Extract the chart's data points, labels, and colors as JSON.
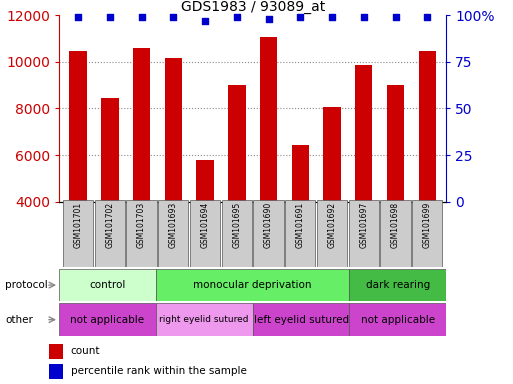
{
  "title": "GDS1983 / 93089_at",
  "samples": [
    "GSM101701",
    "GSM101702",
    "GSM101703",
    "GSM101693",
    "GSM101694",
    "GSM101695",
    "GSM101690",
    "GSM101691",
    "GSM101692",
    "GSM101697",
    "GSM101698",
    "GSM101699"
  ],
  "counts": [
    10450,
    8450,
    10600,
    10150,
    5800,
    9000,
    11050,
    6450,
    8050,
    9850,
    9000,
    10450
  ],
  "percentile_ranks": [
    99,
    99,
    99,
    99,
    97,
    99,
    98,
    99,
    99,
    99,
    99,
    99
  ],
  "ylim_left": [
    4000,
    12000
  ],
  "ylim_right": [
    0,
    100
  ],
  "yticks_left": [
    4000,
    6000,
    8000,
    10000,
    12000
  ],
  "yticks_right": [
    0,
    25,
    50,
    75,
    100
  ],
  "bar_color": "#cc0000",
  "dot_color": "#0000cc",
  "protocol_groups": [
    {
      "label": "control",
      "start": 0,
      "end": 3,
      "color": "#ccffcc"
    },
    {
      "label": "monocular deprivation",
      "start": 3,
      "end": 9,
      "color": "#66ee66"
    },
    {
      "label": "dark rearing",
      "start": 9,
      "end": 12,
      "color": "#44bb44"
    }
  ],
  "other_groups": [
    {
      "label": "not applicable",
      "start": 0,
      "end": 3,
      "color": "#cc44cc"
    },
    {
      "label": "right eyelid sutured",
      "start": 3,
      "end": 6,
      "color": "#ee99ee"
    },
    {
      "label": "left eyelid sutured",
      "start": 6,
      "end": 9,
      "color": "#cc44cc"
    },
    {
      "label": "not applicable",
      "start": 9,
      "end": 12,
      "color": "#cc44cc"
    }
  ],
  "left_axis_color": "#cc0000",
  "right_axis_color": "#0000cc",
  "grid_color": "#888888",
  "sample_box_color": "#cccccc",
  "protocol_label": "protocol",
  "other_label": "other",
  "legend_count_label": "count",
  "legend_pct_label": "percentile rank within the sample",
  "legend_count_color": "#cc0000",
  "legend_pct_color": "#0000cc"
}
